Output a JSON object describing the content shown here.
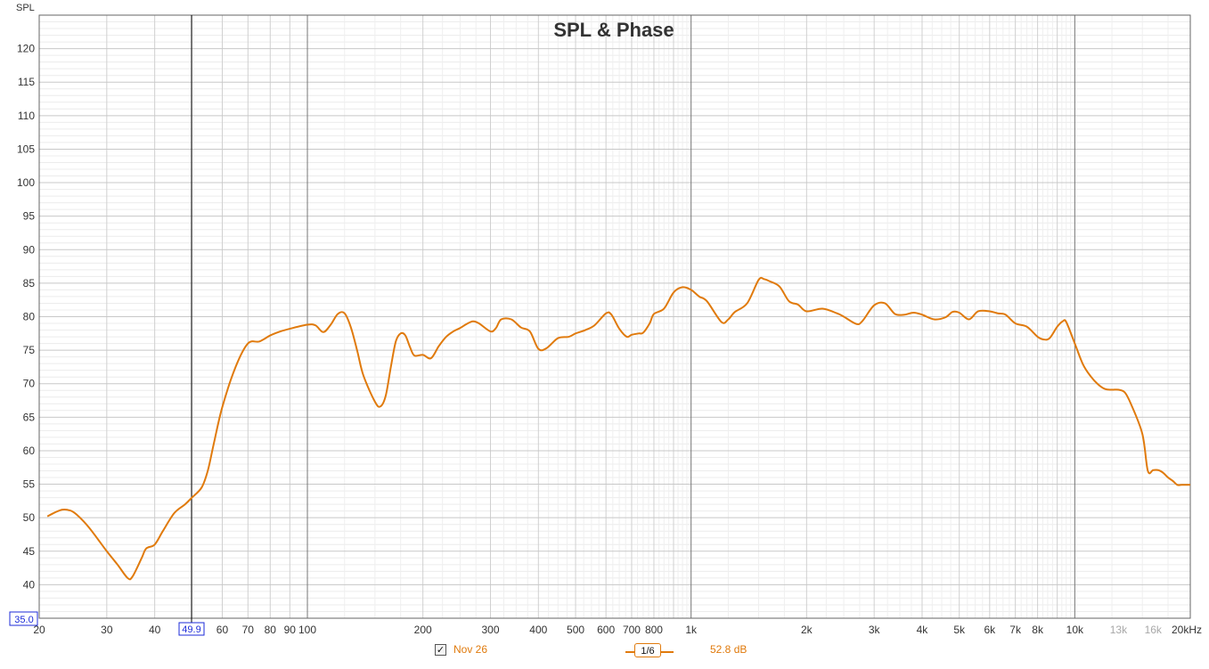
{
  "chart_data": {
    "type": "line",
    "title": "SPL & Phase",
    "ylabel": "SPL",
    "xscale": "log",
    "xlim": [
      20,
      20000
    ],
    "ylim": [
      35,
      125
    ],
    "grid": true,
    "y_ticks": [
      "40",
      "45",
      "50",
      "55",
      "60",
      "65",
      "70",
      "75",
      "80",
      "85",
      "90",
      "95",
      "100",
      "105",
      "110",
      "115",
      "120"
    ],
    "y_min_label": "35.0",
    "x_ticks": [
      {
        "f": 20,
        "label": "20",
        "light": false
      },
      {
        "f": 30,
        "label": "30",
        "light": false
      },
      {
        "f": 40,
        "label": "40",
        "light": false
      },
      {
        "f": 60,
        "label": "60",
        "light": false
      },
      {
        "f": 70,
        "label": "70",
        "light": false
      },
      {
        "f": 80,
        "label": "80",
        "light": false
      },
      {
        "f": 90,
        "label": "90",
        "light": false
      },
      {
        "f": 100,
        "label": "100",
        "light": false
      },
      {
        "f": 200,
        "label": "200",
        "light": false
      },
      {
        "f": 300,
        "label": "300",
        "light": false
      },
      {
        "f": 400,
        "label": "400",
        "light": false
      },
      {
        "f": 500,
        "label": "500",
        "light": false
      },
      {
        "f": 600,
        "label": "600",
        "light": false
      },
      {
        "f": 700,
        "label": "700",
        "light": false
      },
      {
        "f": 800,
        "label": "800",
        "light": false
      },
      {
        "f": 1000,
        "label": "1k",
        "light": false
      },
      {
        "f": 2000,
        "label": "2k",
        "light": false
      },
      {
        "f": 3000,
        "label": "3k",
        "light": false
      },
      {
        "f": 4000,
        "label": "4k",
        "light": false
      },
      {
        "f": 5000,
        "label": "5k",
        "light": false
      },
      {
        "f": 6000,
        "label": "6k",
        "light": false
      },
      {
        "f": 7000,
        "label": "7k",
        "light": false
      },
      {
        "f": 8000,
        "label": "8k",
        "light": false
      },
      {
        "f": 10000,
        "label": "10k",
        "light": false
      },
      {
        "f": 13000,
        "label": "13k",
        "light": true
      },
      {
        "f": 16000,
        "label": "16k",
        "light": true
      },
      {
        "f": 20000,
        "label": "20kHz",
        "light": false
      }
    ],
    "cursor": {
      "f": 49.9,
      "label": "49.9"
    },
    "series": [
      {
        "name": "Nov 26",
        "color": "#e07a0c",
        "x": [
          21,
          22,
          23,
          24,
          25,
          27,
          30,
          32,
          34,
          35,
          37,
          38,
          40,
          42,
          45,
          48,
          50,
          53,
          55,
          57,
          60,
          65,
          70,
          75,
          80,
          85,
          90,
          100,
          105,
          110,
          115,
          120,
          125,
          130,
          135,
          140,
          150,
          155,
          160,
          165,
          170,
          175,
          180,
          185,
          190,
          200,
          210,
          220,
          230,
          240,
          250,
          260,
          270,
          280,
          300,
          310,
          320,
          340,
          360,
          380,
          400,
          420,
          450,
          480,
          500,
          530,
          560,
          600,
          620,
          650,
          680,
          700,
          730,
          750,
          780,
          800,
          850,
          900,
          950,
          1000,
          1050,
          1100,
          1200,
          1250,
          1300,
          1400,
          1500,
          1550,
          1600,
          1700,
          1800,
          1900,
          2000,
          2200,
          2400,
          2500,
          2700,
          2800,
          3000,
          3200,
          3400,
          3600,
          3800,
          4000,
          4300,
          4600,
          4800,
          5000,
          5300,
          5600,
          6000,
          6300,
          6600,
          7000,
          7500,
          8000,
          8300,
          8600,
          9000,
          9300,
          9500,
          10000,
          10500,
          11000,
          11500,
          12000,
          12500,
          13000,
          13500,
          14000,
          15000,
          15500,
          16000,
          16500,
          17000,
          17500,
          18000,
          18500,
          19000,
          20000
        ],
        "y": [
          50.2,
          50.8,
          51.2,
          51.1,
          50.5,
          48.5,
          45.0,
          43.0,
          41.0,
          41.2,
          44.0,
          45.4,
          46.0,
          48.0,
          50.7,
          52.0,
          53.0,
          54.5,
          57.0,
          61.0,
          66.5,
          72.5,
          76.0,
          76.3,
          77.2,
          77.8,
          78.2,
          78.8,
          78.7,
          77.7,
          78.8,
          80.4,
          80.5,
          78.3,
          74.8,
          71.2,
          67.3,
          66.6,
          68.2,
          72.5,
          76.3,
          77.5,
          77.2,
          75.5,
          74.2,
          74.3,
          73.8,
          75.6,
          77.0,
          77.8,
          78.3,
          78.9,
          79.3,
          79.0,
          77.8,
          78.3,
          79.6,
          79.6,
          78.4,
          77.8,
          75.2,
          75.3,
          76.8,
          77.0,
          77.5,
          78.0,
          78.7,
          80.5,
          80.3,
          78.2,
          77.0,
          77.3,
          77.5,
          77.6,
          79.0,
          80.4,
          81.2,
          83.6,
          84.4,
          84.0,
          83.0,
          82.3,
          79.2,
          79.6,
          80.7,
          82.0,
          85.5,
          85.6,
          85.3,
          84.5,
          82.3,
          81.8,
          80.8,
          81.2,
          80.5,
          80.0,
          78.9,
          79.4,
          81.7,
          82.0,
          80.4,
          80.3,
          80.6,
          80.3,
          79.6,
          79.9,
          80.7,
          80.6,
          79.6,
          80.8,
          80.8,
          80.5,
          80.3,
          79.0,
          78.5,
          77.0,
          76.6,
          76.8,
          78.5,
          79.3,
          79.2,
          76.0,
          72.9,
          71.1,
          69.9,
          69.2,
          69.1,
          69.1,
          68.7,
          67.0,
          62.5,
          57.0,
          57.1,
          57.1,
          56.7,
          56.0,
          55.5,
          54.9,
          54.9,
          54.9
        ]
      }
    ]
  },
  "legend": {
    "check_mark": "✓",
    "series_name": "Nov 26",
    "smoothing": "1/6",
    "cursor_value": "52.8 dB"
  }
}
